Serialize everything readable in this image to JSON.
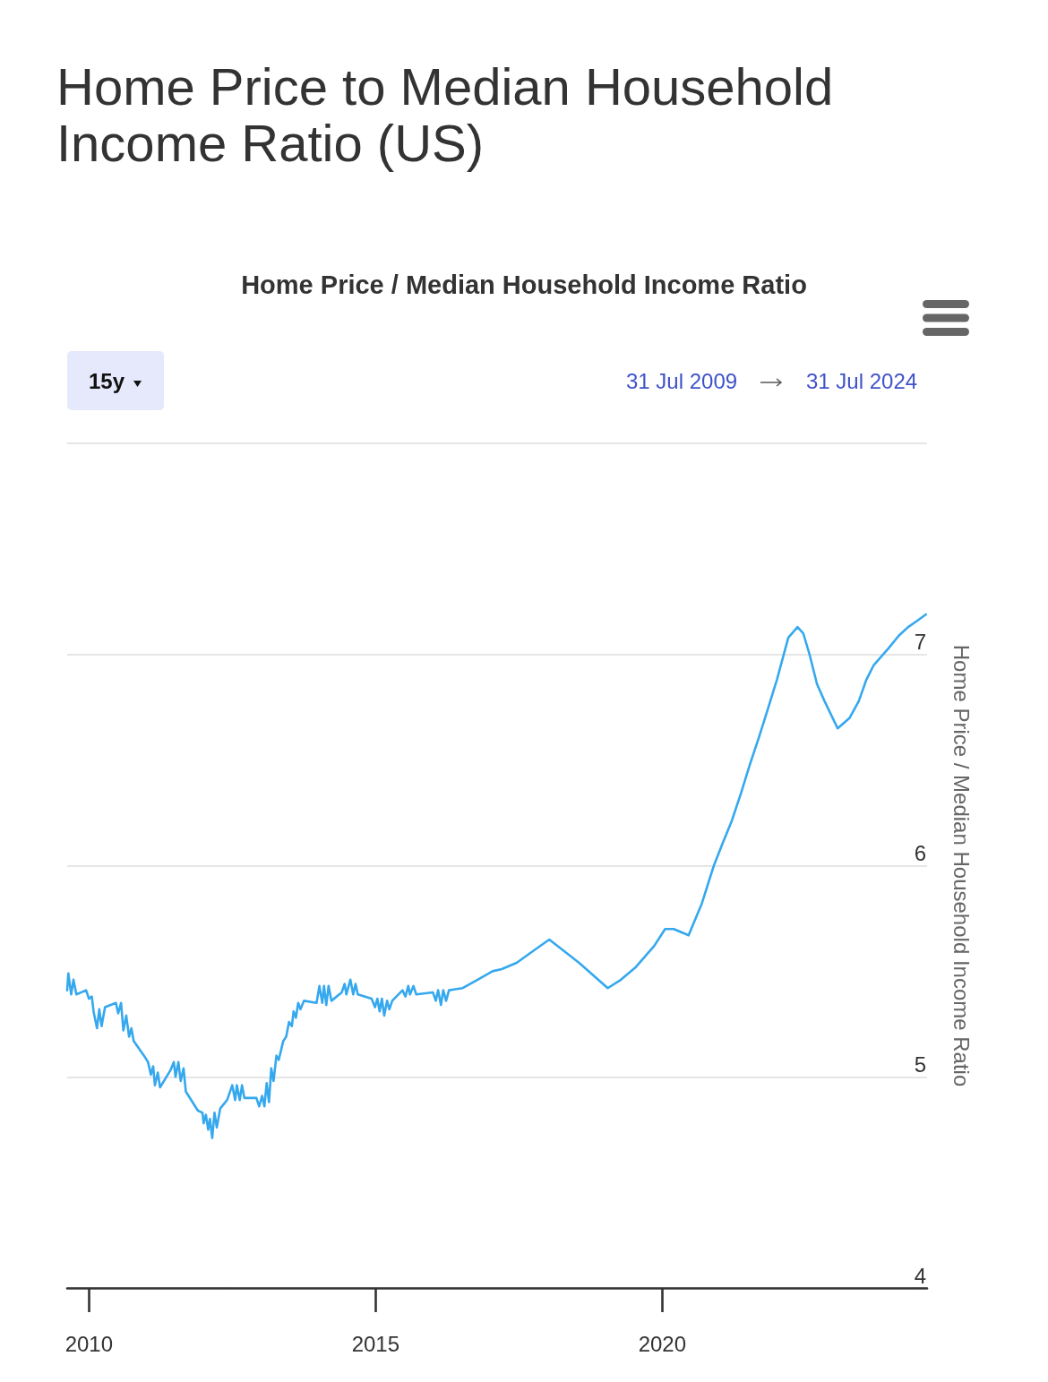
{
  "chart_data": {
    "type": "line",
    "title": "Home Price to Median Household Income Ratio (US)",
    "subtitle": "Home Price / Median Household Income Ratio",
    "ylabel": "Home Price / Median Household Income Ratio",
    "annotations": [
      "15y",
      "31 Jul 2009",
      "31 Jul 2024"
    ],
    "x": [
      2009.62,
      2009.64,
      2009.69,
      2009.73,
      2009.78,
      2009.95,
      2010.0,
      2010.05,
      2010.08,
      2010.14,
      2010.18,
      2010.22,
      2010.28,
      2010.47,
      2010.51,
      2010.56,
      2010.6,
      2010.65,
      2010.7,
      2010.74,
      2010.78,
      2010.96,
      2011.03,
      2011.08,
      2011.12,
      2011.15,
      2011.2,
      2011.24,
      2011.42,
      2011.48,
      2011.51,
      2011.56,
      2011.6,
      2011.65,
      2011.69,
      2011.9,
      2011.98,
      2012.0,
      2012.04,
      2012.08,
      2012.11,
      2012.15,
      2012.19,
      2012.23,
      2012.29,
      2012.41,
      2012.5,
      2012.55,
      2012.58,
      2012.63,
      2012.67,
      2012.71,
      2012.92,
      2012.97,
      2013.02,
      2013.06,
      2013.1,
      2013.14,
      2013.18,
      2013.22,
      2013.27,
      2013.31,
      2013.39,
      2013.44,
      2013.49,
      2013.54,
      2013.57,
      2013.61,
      2013.65,
      2013.69,
      2013.75,
      2013.97,
      2014.02,
      2014.07,
      2014.1,
      2014.14,
      2014.18,
      2014.23,
      2014.41,
      2014.46,
      2014.49,
      2014.56,
      2014.61,
      2014.65,
      2014.69,
      2014.93,
      2014.99,
      2015.03,
      2015.07,
      2015.11,
      2015.15,
      2015.2,
      2015.24,
      2015.29,
      2015.47,
      2015.52,
      2015.57,
      2015.6,
      2015.66,
      2015.71,
      2016.0,
      2016.05,
      2016.09,
      2016.14,
      2016.18,
      2016.23,
      2016.28,
      2016.52,
      2016.78,
      2017.04,
      2017.2,
      2017.46,
      2017.77,
      2018.03,
      2018.55,
      2019.05,
      2019.28,
      2019.54,
      2019.86,
      2020.05,
      2020.2,
      2020.46,
      2020.69,
      2020.9,
      2021.06,
      2021.21,
      2021.37,
      2021.53,
      2021.69,
      2021.84,
      2022.0,
      2022.1,
      2022.2,
      2022.36,
      2022.46,
      2022.57,
      2022.7,
      2022.83,
      2023.06,
      2023.27,
      2023.43,
      2023.56,
      2023.69,
      2023.95,
      2024.13,
      2024.29,
      2024.45,
      2024.6
    ],
    "series": [
      {
        "color": "#35a8ee",
        "values": [
          5.41,
          5.49,
          5.39,
          5.46,
          5.39,
          5.41,
          5.37,
          5.38,
          5.31,
          5.23,
          5.32,
          5.24,
          5.33,
          5.35,
          5.3,
          5.35,
          5.22,
          5.29,
          5.19,
          5.23,
          5.17,
          5.1,
          5.07,
          5.01,
          5.05,
          4.96,
          5.02,
          4.95,
          5.03,
          5.07,
          5.0,
          5.07,
          4.98,
          5.04,
          4.93,
          4.84,
          4.83,
          4.78,
          4.82,
          4.75,
          4.8,
          4.71,
          4.83,
          4.76,
          4.85,
          4.89,
          4.96,
          4.89,
          4.96,
          4.89,
          4.96,
          4.9,
          4.9,
          4.86,
          4.91,
          4.86,
          4.97,
          4.88,
          5.04,
          4.98,
          5.1,
          5.08,
          5.17,
          5.19,
          5.26,
          5.24,
          5.31,
          5.28,
          5.35,
          5.32,
          5.36,
          5.35,
          5.43,
          5.35,
          5.43,
          5.34,
          5.43,
          5.36,
          5.4,
          5.44,
          5.39,
          5.46,
          5.39,
          5.44,
          5.39,
          5.37,
          5.33,
          5.37,
          5.31,
          5.37,
          5.29,
          5.36,
          5.32,
          5.36,
          5.41,
          5.38,
          5.43,
          5.39,
          5.43,
          5.39,
          5.4,
          5.36,
          5.41,
          5.34,
          5.41,
          5.36,
          5.41,
          5.42,
          5.46,
          5.5,
          5.51,
          5.54,
          5.6,
          5.65,
          5.54,
          5.42,
          5.46,
          5.52,
          5.62,
          5.7,
          5.7,
          5.67,
          5.82,
          6.0,
          6.11,
          6.21,
          6.34,
          6.48,
          6.61,
          6.74,
          6.88,
          6.98,
          7.08,
          7.13,
          7.1,
          7.0,
          6.86,
          6.78,
          6.65,
          6.7,
          6.78,
          6.88,
          6.95,
          7.03,
          7.09,
          7.13,
          7.16,
          7.19
        ]
      }
    ],
    "xlim": [
      2009.62,
      2024.62
    ],
    "xticks": [
      2010,
      2015,
      2020
    ],
    "ylim": [
      4,
      8
    ],
    "yticks": [
      4,
      5,
      6,
      7,
      {
        "value": 8,
        "label": null
      }
    ],
    "grid": "y",
    "marker": "none",
    "line_style": "solid"
  }
}
